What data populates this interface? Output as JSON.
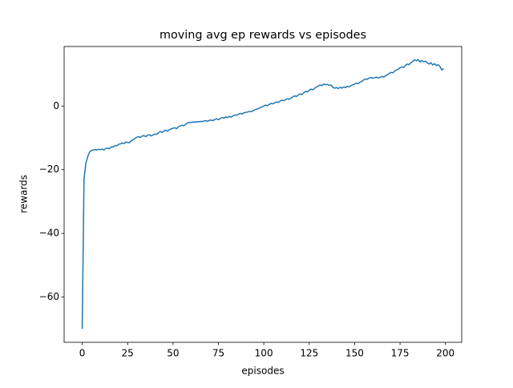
{
  "chart_data": {
    "type": "line",
    "title": "moving avg ep rewards vs episodes",
    "x_label": "episodes",
    "y_label": "rewards",
    "color": "#1f77b4",
    "x": [
      0,
      1,
      2,
      3,
      4,
      5,
      6,
      7,
      8,
      9,
      10,
      11,
      12,
      13,
      14,
      15,
      16,
      17,
      18,
      19,
      20,
      21,
      22,
      23,
      24,
      25,
      26,
      27,
      28,
      29,
      30,
      31,
      32,
      33,
      34,
      35,
      36,
      37,
      38,
      39,
      40,
      41,
      42,
      43,
      44,
      45,
      46,
      47,
      48,
      49,
      50,
      51,
      52,
      53,
      54,
      55,
      56,
      57,
      58,
      59,
      60,
      61,
      62,
      63,
      64,
      65,
      66,
      67,
      68,
      69,
      70,
      71,
      72,
      73,
      74,
      75,
      76,
      77,
      78,
      79,
      80,
      81,
      82,
      83,
      84,
      85,
      86,
      87,
      88,
      89,
      90,
      91,
      92,
      93,
      94,
      95,
      96,
      97,
      98,
      99,
      100,
      101,
      102,
      103,
      104,
      105,
      106,
      107,
      108,
      109,
      110,
      111,
      112,
      113,
      114,
      115,
      116,
      117,
      118,
      119,
      120,
      121,
      122,
      123,
      124,
      125,
      126,
      127,
      128,
      129,
      130,
      131,
      132,
      133,
      134,
      135,
      136,
      137,
      138,
      139,
      140,
      141,
      142,
      143,
      144,
      145,
      146,
      147,
      148,
      149,
      150,
      151,
      152,
      153,
      154,
      155,
      156,
      157,
      158,
      159,
      160,
      161,
      162,
      163,
      164,
      165,
      166,
      167,
      168,
      169,
      170,
      171,
      172,
      173,
      174,
      175,
      176,
      177,
      178,
      179,
      180,
      181,
      182,
      183,
      184,
      185,
      186,
      187,
      188,
      189,
      190,
      191,
      192,
      193,
      194,
      195,
      196,
      197,
      198,
      199
    ],
    "values": [
      -70,
      -23,
      -18,
      -16,
      -14.5,
      -14,
      -13.8,
      -13.7,
      -13.8,
      -13.6,
      -13.7,
      -13.5,
      -13.8,
      -13.3,
      -13.2,
      -13.4,
      -12.8,
      -12.9,
      -12.4,
      -12.5,
      -12.0,
      -11.9,
      -11.6,
      -11.8,
      -11.3,
      -11.4,
      -11.5,
      -10.9,
      -10.6,
      -10.2,
      -9.8,
      -9.6,
      -9.9,
      -9.4,
      -9.3,
      -9.6,
      -9.2,
      -9.0,
      -9.4,
      -9.1,
      -8.8,
      -8.9,
      -8.4,
      -8.0,
      -8.3,
      -7.8,
      -7.6,
      -7.9,
      -7.4,
      -7.2,
      -7.0,
      -6.8,
      -7.1,
      -6.5,
      -6.3,
      -6.0,
      -6.2,
      -5.7,
      -5.3,
      -5.1,
      -5.2,
      -5.0,
      -5.1,
      -4.9,
      -5.0,
      -4.8,
      -4.9,
      -4.7,
      -4.6,
      -4.8,
      -4.5,
      -4.4,
      -4.6,
      -4.2,
      -4.0,
      -4.3,
      -3.9,
      -3.6,
      -3.8,
      -3.4,
      -3.6,
      -3.3,
      -3.5,
      -3.1,
      -2.8,
      -2.9,
      -2.6,
      -2.3,
      -2.5,
      -2.1,
      -2.0,
      -1.9,
      -1.7,
      -1.8,
      -1.5,
      -1.2,
      -1.0,
      -0.8,
      -0.5,
      -0.3,
      0.0,
      0.3,
      0.1,
      0.5,
      0.8,
      0.7,
      1.0,
      1.3,
      1.1,
      1.6,
      1.8,
      1.7,
      2.0,
      2.3,
      2.1,
      2.5,
      2.9,
      3.2,
      3.0,
      3.5,
      3.8,
      3.6,
      4.2,
      4.6,
      4.4,
      5.0,
      5.3,
      5.1,
      5.6,
      6.0,
      6.3,
      6.6,
      6.4,
      6.9,
      6.7,
      6.8,
      6.5,
      6.6,
      5.9,
      5.6,
      5.8,
      5.5,
      5.9,
      5.6,
      6.0,
      5.8,
      6.2,
      6.0,
      6.4,
      6.7,
      6.9,
      7.2,
      7.0,
      7.5,
      7.8,
      8.2,
      8.5,
      8.4,
      8.8,
      9.0,
      8.7,
      8.9,
      9.1,
      8.8,
      9.0,
      9.3,
      9.1,
      9.5,
      9.8,
      10.2,
      10.6,
      10.4,
      11.0,
      11.3,
      11.6,
      12.0,
      12.3,
      12.1,
      12.8,
      13.2,
      13.0,
      13.6,
      14.0,
      14.5,
      14.2,
      14.6,
      13.8,
      14.3,
      13.9,
      14.1,
      13.6,
      13.2,
      13.6,
      12.9,
      13.3,
      12.7,
      13.0,
      12.4,
      11.3,
      11.8
    ],
    "xlim": [
      -9.95,
      208.95
    ],
    "ylim": [
      -74.2,
      18.7
    ],
    "xticks": [
      0,
      25,
      50,
      75,
      100,
      125,
      150,
      175,
      200
    ],
    "yticks": [
      {
        "value": -60,
        "label": "−60"
      },
      {
        "value": -40,
        "label": "−40"
      },
      {
        "value": -20,
        "label": "−20"
      },
      0
    ]
  }
}
